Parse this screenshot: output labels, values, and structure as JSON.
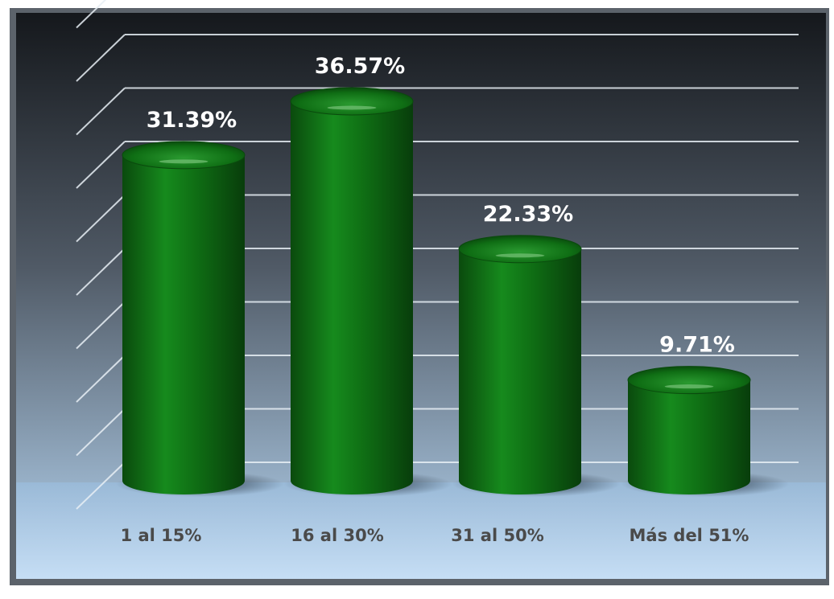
{
  "chart_data": {
    "type": "bar",
    "categories": [
      "1 al 15%",
      "16 al 30%",
      "31 al 50%",
      "Más del 51%"
    ],
    "values": [
      31.39,
      36.57,
      22.33,
      9.71
    ],
    "data_labels": [
      "31.39%",
      "36.57%",
      "22.33%",
      "9.71%"
    ],
    "title": "",
    "xlabel": "",
    "ylabel": "",
    "ylim": [
      0,
      40
    ],
    "grid": true,
    "legend": "none",
    "bar_shape": "cylinder",
    "colors": {
      "bar": "#0f6e14",
      "bar_dark": "#0a4a0d",
      "background_top": "#15181c",
      "background_bottom": "#b7d6f2",
      "label_value": "#ffffff",
      "label_category": "#4a4a4a"
    }
  }
}
